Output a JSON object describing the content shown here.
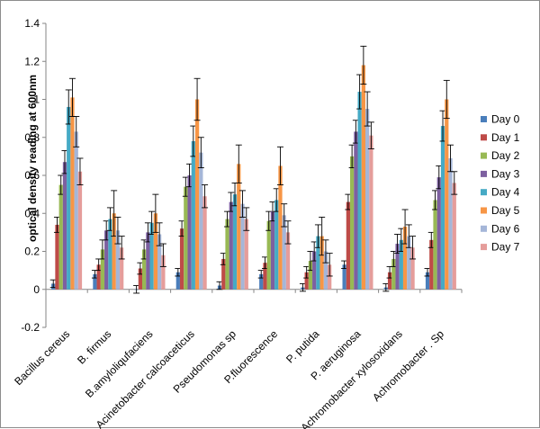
{
  "chart_data": {
    "type": "bar",
    "title": "",
    "xlabel": "",
    "ylabel": "optical density reading at 600nm",
    "ylim": [
      -0.2,
      1.4
    ],
    "ytick_step": 0.2,
    "yticks": [
      "-0.2",
      "0",
      "0.2",
      "0.4",
      "0.6",
      "0.8",
      "1",
      "1.2",
      "1.4"
    ],
    "grid": false,
    "legend_position": "right",
    "error_bars": true,
    "categories": [
      "Bacillus cereus",
      "B. firmus",
      "B.amyloliqufaciens",
      "Acinetobacter calcoaceticus",
      "Pseudomonas sp",
      "P.fluorescence",
      "P. putida",
      "P. aeruginosa",
      "Achromobacter xylosoxidans",
      "Achromobacter . Sp"
    ],
    "series": [
      {
        "name": "Day 0",
        "color": "#4a7ebb",
        "values": [
          0.03,
          0.08,
          0.0,
          0.09,
          0.02,
          0.08,
          0.01,
          0.13,
          0.01,
          0.09
        ],
        "errors": [
          0.02,
          0.02,
          0.02,
          0.02,
          0.02,
          0.02,
          0.02,
          0.02,
          0.02,
          0.02
        ]
      },
      {
        "name": "Day 1",
        "color": "#be4b48",
        "values": [
          0.34,
          0.13,
          0.11,
          0.32,
          0.16,
          0.14,
          0.09,
          0.46,
          0.09,
          0.26
        ],
        "errors": [
          0.04,
          0.03,
          0.03,
          0.04,
          0.03,
          0.03,
          0.03,
          0.04,
          0.03,
          0.04
        ]
      },
      {
        "name": "Day 2",
        "color": "#98b954",
        "values": [
          0.55,
          0.21,
          0.21,
          0.54,
          0.37,
          0.36,
          0.15,
          0.7,
          0.16,
          0.47
        ],
        "errors": [
          0.05,
          0.05,
          0.05,
          0.05,
          0.04,
          0.05,
          0.05,
          0.06,
          0.04,
          0.05
        ]
      },
      {
        "name": "Day 3",
        "color": "#7d60a0",
        "values": [
          0.67,
          0.31,
          0.3,
          0.6,
          0.46,
          0.41,
          0.2,
          0.83,
          0.24,
          0.59
        ],
        "errors": [
          0.06,
          0.05,
          0.05,
          0.06,
          0.05,
          0.05,
          0.05,
          0.06,
          0.05,
          0.06
        ]
      },
      {
        "name": "Day 4",
        "color": "#46aac5",
        "values": [
          0.96,
          0.37,
          0.35,
          0.78,
          0.5,
          0.47,
          0.28,
          1.04,
          0.26,
          0.86
        ],
        "errors": [
          0.09,
          0.06,
          0.06,
          0.08,
          0.06,
          0.06,
          0.06,
          0.09,
          0.06,
          0.08
        ]
      },
      {
        "name": "Day 5",
        "color": "#f79646",
        "values": [
          1.01,
          0.4,
          0.4,
          1.0,
          0.66,
          0.65,
          0.28,
          1.18,
          0.33,
          1.0
        ],
        "errors": [
          0.1,
          0.12,
          0.1,
          0.11,
          0.1,
          0.1,
          0.1,
          0.1,
          0.09,
          0.1
        ]
      },
      {
        "name": "Day 6",
        "color": "#a5b6d8",
        "values": [
          0.83,
          0.31,
          0.29,
          0.72,
          0.45,
          0.39,
          0.2,
          0.95,
          0.28,
          0.69
        ],
        "errors": [
          0.08,
          0.07,
          0.06,
          0.08,
          0.07,
          0.06,
          0.06,
          0.09,
          0.06,
          0.07
        ]
      },
      {
        "name": "Day 7",
        "color": "#e59d9b",
        "values": [
          0.62,
          0.22,
          0.18,
          0.49,
          0.37,
          0.3,
          0.13,
          0.81,
          0.22,
          0.56
        ],
        "errors": [
          0.07,
          0.06,
          0.06,
          0.06,
          0.06,
          0.06,
          0.06,
          0.07,
          0.06,
          0.06
        ]
      }
    ]
  }
}
